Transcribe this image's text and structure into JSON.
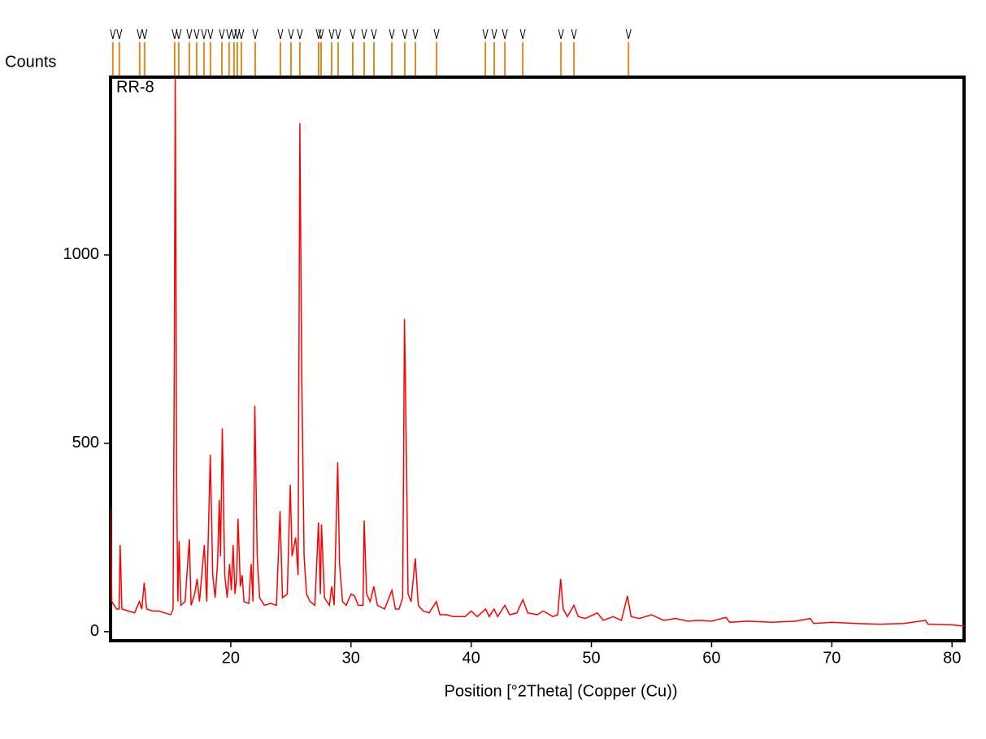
{
  "chart_data": {
    "type": "line",
    "title": "RR-8",
    "y_label": "Counts",
    "x_label": "Position [°2Theta] (Copper (Cu))",
    "xlim": [
      10,
      81
    ],
    "ylim": [
      -24,
      1472
    ],
    "xticks": [
      20,
      30,
      40,
      50,
      60,
      70,
      80
    ],
    "yticks": [
      0,
      500,
      1000
    ],
    "peak_marker_color": "#e08a1e",
    "peak_positions": [
      10.19,
      10.73,
      12.42,
      12.83,
      15.33,
      15.67,
      16.55,
      17.16,
      17.77,
      18.31,
      19.26,
      19.86,
      20.27,
      20.54,
      20.88,
      22.03,
      24.13,
      25.01,
      25.75,
      27.31,
      27.51,
      28.39,
      28.93,
      30.15,
      31.1,
      31.91,
      33.4,
      34.48,
      35.36,
      37.12,
      41.18,
      41.92,
      42.8,
      44.29,
      47.47,
      48.55,
      53.09
    ],
    "series": [
      {
        "color": "#ff0000",
        "x": [
          10.0,
          10.1,
          10.5,
          10.7,
          10.8,
          10.95,
          11.5,
          12.0,
          12.4,
          12.6,
          12.8,
          13.0,
          13.5,
          14.0,
          14.5,
          15.0,
          15.2,
          15.3,
          15.38,
          15.5,
          15.6,
          15.7,
          15.85,
          16.2,
          16.55,
          16.7,
          17.0,
          17.2,
          17.4,
          17.8,
          18.0,
          18.3,
          18.5,
          18.7,
          18.9,
          19.05,
          19.15,
          19.3,
          19.5,
          19.7,
          19.9,
          20.05,
          20.2,
          20.35,
          20.5,
          20.6,
          20.8,
          20.95,
          21.1,
          21.5,
          21.7,
          21.85,
          22.0,
          22.2,
          22.4,
          22.8,
          23.3,
          23.8,
          24.1,
          24.3,
          24.7,
          24.95,
          25.1,
          25.4,
          25.6,
          25.75,
          25.9,
          26.1,
          26.3,
          26.6,
          27.0,
          27.3,
          27.45,
          27.55,
          27.8,
          28.2,
          28.4,
          28.6,
          28.9,
          29.05,
          29.3,
          29.6,
          30.0,
          30.3,
          30.6,
          31.0,
          31.1,
          31.3,
          31.6,
          31.9,
          32.2,
          32.8,
          33.4,
          33.7,
          34.0,
          34.3,
          34.45,
          34.6,
          34.75,
          35.0,
          35.35,
          35.6,
          36.0,
          36.5,
          37.1,
          37.4,
          38.0,
          38.5,
          39.5,
          40.0,
          40.5,
          41.2,
          41.5,
          41.9,
          42.2,
          42.8,
          43.2,
          43.8,
          44.3,
          44.7,
          45.5,
          46.0,
          46.8,
          47.2,
          47.45,
          47.65,
          48.0,
          48.55,
          48.9,
          49.5,
          50.5,
          51.0,
          51.8,
          52.5,
          53.0,
          53.3,
          54.0,
          55.0,
          56.0,
          57.0,
          58.0,
          59.0,
          60.0,
          61.2,
          61.5,
          63.0,
          65.0,
          67.0,
          68.2,
          68.5,
          70.0,
          72.0,
          74.0,
          76.0,
          77.8,
          78.0,
          80.0,
          81.0
        ],
        "values": [
          330,
          80,
          60,
          60,
          230,
          60,
          55,
          50,
          80,
          60,
          130,
          60,
          55,
          55,
          50,
          45,
          60,
          700,
          1470,
          400,
          80,
          240,
          70,
          80,
          245,
          70,
          100,
          140,
          80,
          230,
          80,
          470,
          150,
          90,
          180,
          350,
          200,
          540,
          150,
          90,
          180,
          110,
          230,
          100,
          150,
          300,
          120,
          150,
          80,
          75,
          180,
          80,
          600,
          200,
          90,
          70,
          75,
          70,
          320,
          90,
          100,
          390,
          200,
          250,
          150,
          1350,
          700,
          200,
          100,
          80,
          70,
          290,
          100,
          285,
          90,
          70,
          120,
          70,
          450,
          180,
          80,
          70,
          100,
          95,
          70,
          70,
          295,
          100,
          80,
          120,
          70,
          60,
          110,
          60,
          60,
          90,
          830,
          500,
          100,
          80,
          195,
          70,
          55,
          50,
          80,
          45,
          45,
          40,
          40,
          55,
          40,
          60,
          40,
          60,
          40,
          70,
          45,
          50,
          85,
          50,
          45,
          55,
          40,
          45,
          140,
          60,
          40,
          70,
          40,
          35,
          50,
          30,
          40,
          30,
          95,
          40,
          35,
          45,
          30,
          35,
          28,
          30,
          28,
          38,
          25,
          28,
          25,
          28,
          35,
          22,
          25,
          22,
          20,
          22,
          30,
          20,
          18,
          15
        ]
      }
    ]
  }
}
